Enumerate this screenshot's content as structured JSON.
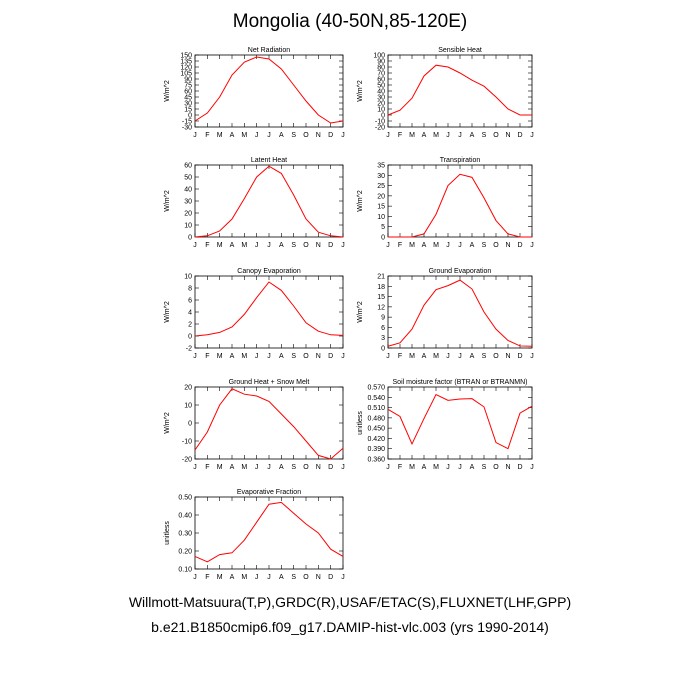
{
  "page": {
    "title": "Mongolia (40-50N,85-120E)",
    "caption_line1": "Willmott-Matsuura(T,P),GRDC(R),USAF/ETAC(S),FLUXNET(LHF,GPP)",
    "caption_line2": "b.e21.B1850cmip6.f09_g17.DAMIP-hist-vlc.003 (yrs 1990-2014)",
    "line_color": "#ff0000"
  },
  "chart_data": [
    {
      "type": "line",
      "title": "Net Radiation",
      "ylabel": "W/m^2",
      "x": [
        "J",
        "F",
        "M",
        "A",
        "M",
        "J",
        "J",
        "A",
        "S",
        "O",
        "N",
        "D",
        "J"
      ],
      "ylim": [
        -30,
        150
      ],
      "yticks": [
        "-30",
        "-15",
        "0",
        "15",
        "30",
        "45",
        "60",
        "75",
        "90",
        "105",
        "120",
        "135",
        "150"
      ],
      "series": [
        {
          "values": [
            -15,
            5,
            45,
            100,
            132,
            145,
            140,
            115,
            75,
            35,
            0,
            -20,
            -15
          ]
        }
      ]
    },
    {
      "type": "line",
      "title": "Sensible Heat",
      "ylabel": "W/m^2",
      "x": [
        "J",
        "F",
        "M",
        "A",
        "M",
        "J",
        "J",
        "A",
        "S",
        "O",
        "N",
        "D",
        "J"
      ],
      "ylim": [
        -20,
        100
      ],
      "yticks": [
        "-20",
        "-10",
        "0",
        "10",
        "20",
        "30",
        "40",
        "50",
        "60",
        "70",
        "80",
        "90",
        "100"
      ],
      "series": [
        {
          "values": [
            0,
            8,
            28,
            65,
            83,
            80,
            70,
            58,
            48,
            30,
            10,
            0,
            0
          ]
        }
      ]
    },
    {
      "type": "line",
      "title": "Latent Heat",
      "ylabel": "W/m^2",
      "x": [
        "J",
        "F",
        "M",
        "A",
        "M",
        "J",
        "J",
        "A",
        "S",
        "O",
        "N",
        "D",
        "J"
      ],
      "ylim": [
        0,
        60
      ],
      "yticks": [
        "0",
        "10",
        "20",
        "30",
        "40",
        "50",
        "60"
      ],
      "series": [
        {
          "values": [
            0,
            1,
            5,
            15,
            32,
            50,
            59,
            53,
            35,
            15,
            4,
            1,
            0
          ]
        }
      ]
    },
    {
      "type": "line",
      "title": "Transpiration",
      "ylabel": "W/m^2",
      "x": [
        "J",
        "F",
        "M",
        "A",
        "M",
        "J",
        "J",
        "A",
        "S",
        "O",
        "N",
        "D",
        "J"
      ],
      "ylim": [
        0,
        35
      ],
      "yticks": [
        "0",
        "5",
        "10",
        "15",
        "20",
        "25",
        "30",
        "35"
      ],
      "series": [
        {
          "values": [
            0,
            0,
            0,
            1.5,
            11,
            25,
            30.5,
            29,
            19,
            8,
            1.5,
            0,
            0
          ]
        }
      ]
    },
    {
      "type": "line",
      "title": "Canopy Evaporation",
      "ylabel": "W/m^2",
      "x": [
        "J",
        "F",
        "M",
        "A",
        "M",
        "J",
        "J",
        "A",
        "S",
        "O",
        "N",
        "D",
        "J"
      ],
      "ylim": [
        -2,
        10
      ],
      "yticks": [
        "-2",
        "0",
        "2",
        "4",
        "6",
        "8",
        "10"
      ],
      "series": [
        {
          "values": [
            0,
            0.2,
            0.6,
            1.5,
            3.6,
            6.4,
            9.0,
            7.6,
            5.0,
            2.2,
            0.8,
            0.2,
            0.1
          ]
        }
      ]
    },
    {
      "type": "line",
      "title": "Ground Evaporation",
      "ylabel": "W/m^2",
      "x": [
        "J",
        "F",
        "M",
        "A",
        "M",
        "J",
        "J",
        "A",
        "S",
        "O",
        "N",
        "D",
        "J"
      ],
      "ylim": [
        0,
        21
      ],
      "yticks": [
        "0",
        "3",
        "6",
        "9",
        "12",
        "15",
        "18",
        "21"
      ],
      "series": [
        {
          "values": [
            0.5,
            1.5,
            5.5,
            12.5,
            17,
            18.2,
            19.8,
            17.2,
            10.5,
            5.5,
            2.2,
            0.6,
            0.5
          ]
        }
      ]
    },
    {
      "type": "line",
      "title": "Ground Heat + Snow Melt",
      "ylabel": "W/m^2",
      "x": [
        "J",
        "F",
        "M",
        "A",
        "M",
        "J",
        "J",
        "A",
        "S",
        "O",
        "N",
        "D",
        "J"
      ],
      "ylim": [
        -20,
        20
      ],
      "yticks": [
        "-20",
        "-10",
        "0",
        "10",
        "20"
      ],
      "series": [
        {
          "values": [
            -15,
            -5,
            10,
            19,
            16,
            15,
            12,
            5,
            -2,
            -10,
            -18,
            -20,
            -14
          ]
        }
      ]
    },
    {
      "type": "line",
      "title": "Soil moisture factor (BTRAN or BTRANMN)",
      "ylabel": "unitless",
      "x": [
        "J",
        "F",
        "M",
        "A",
        "M",
        "J",
        "J",
        "A",
        "S",
        "O",
        "N",
        "D",
        "J"
      ],
      "ylim": [
        0.36,
        0.57
      ],
      "yticks": [
        "0.360",
        "0.390",
        "0.420",
        "0.450",
        "0.480",
        "0.510",
        "0.540",
        "0.570"
      ],
      "series": [
        {
          "values": [
            0.505,
            0.484,
            0.404,
            0.478,
            0.548,
            0.531,
            0.535,
            0.536,
            0.512,
            0.408,
            0.39,
            0.494,
            0.514
          ]
        }
      ]
    },
    {
      "type": "line",
      "title": "Evaporative Fraction",
      "ylabel": "unitless",
      "x": [
        "J",
        "F",
        "M",
        "A",
        "M",
        "J",
        "J",
        "A",
        "S",
        "O",
        "N",
        "D",
        "J"
      ],
      "ylim": [
        0.1,
        0.5
      ],
      "yticks": [
        "0.10",
        "0.20",
        "0.30",
        "0.40",
        "0.50"
      ],
      "series": [
        {
          "values": [
            0.17,
            0.14,
            0.18,
            0.19,
            0.26,
            0.36,
            0.46,
            0.47,
            0.41,
            0.35,
            0.3,
            0.21,
            0.17
          ]
        }
      ]
    }
  ]
}
